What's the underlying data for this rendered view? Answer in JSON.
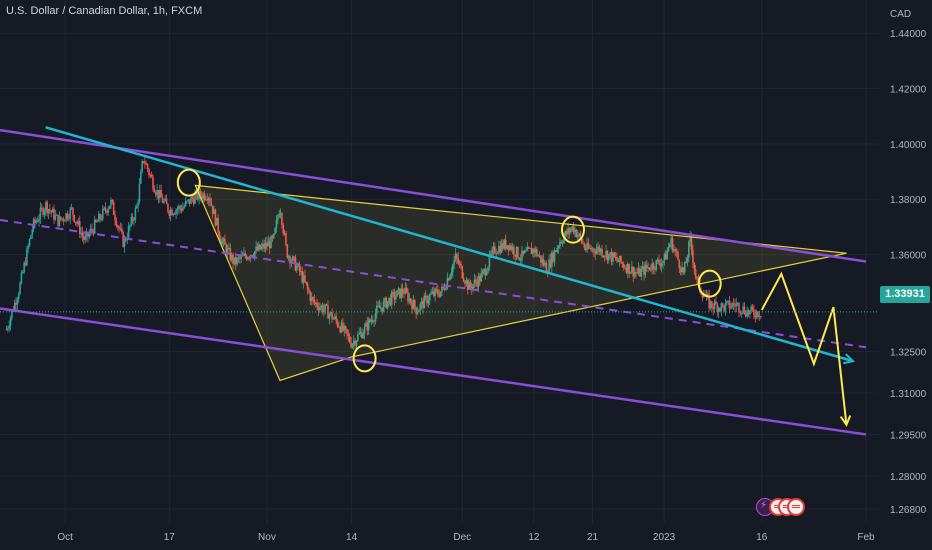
{
  "header": {
    "title": "U.S. Dollar / Canadian Dollar, 1h, FXCM",
    "currency": "CAD"
  },
  "price_badge": {
    "value": "1.33931"
  },
  "colors": {
    "background": "#161a25",
    "grid": "#222633",
    "up_candle": "#26a69a",
    "down_candle": "#ef5350",
    "channel": "#8a4fd6",
    "cyan_trend": "#1fb6d0",
    "triangle": "#e6d23c",
    "forecast": "#ffe94d",
    "price_line": "#26a69a"
  },
  "chart_data": {
    "type": "candlestick",
    "y_axis": {
      "range": [
        1.263,
        1.452
      ],
      "tick_labels": [
        "1.44000",
        "1.42000",
        "1.40000",
        "1.38000",
        "1.36000",
        "1.32500",
        "1.31000",
        "1.29500",
        "1.28000",
        "1.26800"
      ],
      "tick_values": [
        1.44,
        1.42,
        1.4,
        1.38,
        1.36,
        1.325,
        1.31,
        1.295,
        1.28,
        1.268
      ]
    },
    "x_axis": {
      "tick_labels": [
        "Oct",
        "17",
        "Nov",
        "14",
        "Dec",
        "12",
        "21",
        "2023",
        "16",
        "Feb"
      ],
      "tick_dates": [
        "2022-10-01",
        "2022-10-17",
        "2022-11-01",
        "2022-11-14",
        "2022-12-01",
        "2022-12-12",
        "2022-12-21",
        "2023-01-01",
        "2023-01-16",
        "2023-02-01"
      ]
    },
    "last_price": 1.33931,
    "price_path": [
      [
        "2022-09-22",
        1.333
      ],
      [
        "2022-09-24",
        1.348
      ],
      [
        "2022-09-26",
        1.37
      ],
      [
        "2022-09-28",
        1.378
      ],
      [
        "2022-09-30",
        1.372
      ],
      [
        "2022-10-02",
        1.376
      ],
      [
        "2022-10-04",
        1.365
      ],
      [
        "2022-10-06",
        1.372
      ],
      [
        "2022-10-08",
        1.379
      ],
      [
        "2022-10-10",
        1.364
      ],
      [
        "2022-10-12",
        1.377
      ],
      [
        "2022-10-13",
        1.395
      ],
      [
        "2022-10-15",
        1.383
      ],
      [
        "2022-10-17",
        1.376
      ],
      [
        "2022-10-19",
        1.377
      ],
      [
        "2022-10-21",
        1.381
      ],
      [
        "2022-10-23",
        1.382
      ],
      [
        "2022-10-25",
        1.365
      ],
      [
        "2022-10-27",
        1.357
      ],
      [
        "2022-10-29",
        1.36
      ],
      [
        "2022-10-31",
        1.362
      ],
      [
        "2022-11-02",
        1.365
      ],
      [
        "2022-11-03",
        1.378
      ],
      [
        "2022-11-04",
        1.361
      ],
      [
        "2022-11-06",
        1.354
      ],
      [
        "2022-11-08",
        1.343
      ],
      [
        "2022-11-10",
        1.34
      ],
      [
        "2022-11-12",
        1.335
      ],
      [
        "2022-11-14",
        1.328
      ],
      [
        "2022-11-16",
        1.333
      ],
      [
        "2022-11-18",
        1.34
      ],
      [
        "2022-11-20",
        1.344
      ],
      [
        "2022-11-22",
        1.347
      ],
      [
        "2022-11-24",
        1.34
      ],
      [
        "2022-11-26",
        1.345
      ],
      [
        "2022-11-28",
        1.347
      ],
      [
        "2022-11-30",
        1.359
      ],
      [
        "2022-12-02",
        1.348
      ],
      [
        "2022-12-04",
        1.352
      ],
      [
        "2022-12-06",
        1.362
      ],
      [
        "2022-12-08",
        1.364
      ],
      [
        "2022-12-10",
        1.359
      ],
      [
        "2022-12-12",
        1.362
      ],
      [
        "2022-12-14",
        1.355
      ],
      [
        "2022-12-16",
        1.365
      ],
      [
        "2022-12-18",
        1.37
      ],
      [
        "2022-12-20",
        1.362
      ],
      [
        "2022-12-22",
        1.362
      ],
      [
        "2022-12-24",
        1.359
      ],
      [
        "2022-12-26",
        1.356
      ],
      [
        "2022-12-28",
        1.353
      ],
      [
        "2022-12-30",
        1.356
      ],
      [
        "2023-01-01",
        1.358
      ],
      [
        "2023-01-02",
        1.365
      ],
      [
        "2023-01-04",
        1.353
      ],
      [
        "2023-01-05",
        1.365
      ],
      [
        "2023-01-06",
        1.35
      ],
      [
        "2023-01-08",
        1.342
      ],
      [
        "2023-01-10",
        1.341
      ],
      [
        "2023-01-12",
        1.342
      ],
      [
        "2023-01-14",
        1.339
      ],
      [
        "2023-01-16",
        1.3393
      ]
    ],
    "drawings": {
      "upper_channel": [
        [
          "2022-09-21",
          1.405
        ],
        [
          "2023-02-01",
          1.3575
        ]
      ],
      "lower_channel": [
        [
          "2022-09-21",
          1.3405
        ],
        [
          "2023-02-01",
          1.295
        ]
      ],
      "mid_channel_dashed": [
        [
          "2022-09-21",
          1.3725
        ],
        [
          "2023-02-01",
          1.3265
        ]
      ],
      "cyan_trend": [
        [
          "2022-09-28",
          1.406
        ],
        [
          "2023-01-30",
          1.3215
        ]
      ],
      "triangle": [
        [
          "2022-10-21",
          1.385
        ],
        [
          "2023-01-29",
          1.3605
        ],
        [
          "2022-11-14",
          1.323
        ],
        [
          "2022-11-03",
          1.3145
        ]
      ],
      "forecast": [
        [
          "2023-01-16",
          1.34
        ],
        [
          "2023-01-19",
          1.353
        ],
        [
          "2023-01-24",
          1.3205
        ],
        [
          "2023-01-27",
          1.341
        ],
        [
          "2023-01-29",
          1.2985
        ]
      ],
      "circles": [
        [
          "2022-10-20",
          1.386
        ],
        [
          "2022-11-16",
          1.3225
        ],
        [
          "2022-12-18",
          1.369
        ],
        [
          "2023-01-08",
          1.3495
        ]
      ]
    }
  }
}
